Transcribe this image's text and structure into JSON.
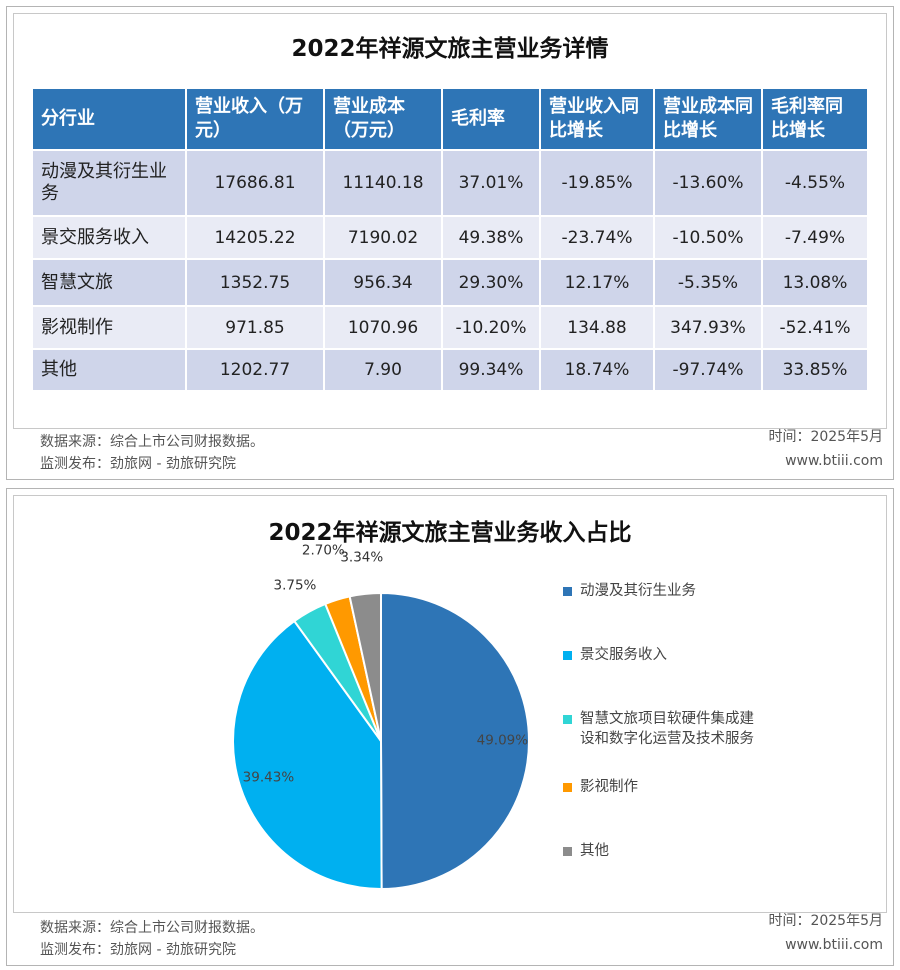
{
  "table_section": {
    "title": "2022年祥源文旅主营业务详情",
    "headers": [
      "分行业",
      "营业收入（万元）",
      "营业成本（万元）",
      "毛利率",
      "营业收入同比增长",
      "营业成本同比增长",
      "毛利率同比增长"
    ],
    "rows": [
      [
        "动漫及其衍生业务",
        "17686.81",
        "11140.18",
        "37.01%",
        "-19.85%",
        "-13.60%",
        "-4.55%"
      ],
      [
        "景交服务收入",
        "14205.22",
        "7190.02",
        "49.38%",
        "-23.74%",
        "-10.50%",
        "-7.49%"
      ],
      [
        "智慧文旅",
        "1352.75",
        "956.34",
        "29.30%",
        "12.17%",
        "-5.35%",
        "13.08%"
      ],
      [
        "影视制作",
        "971.85",
        "1070.96",
        "-10.20%",
        "134.88",
        "347.93%",
        "-52.41%"
      ],
      [
        "其他",
        "1202.77",
        "7.90",
        "99.34%",
        "18.74%",
        "-97.74%",
        "33.85%"
      ]
    ],
    "header_color": "#2e75b6",
    "footer": {
      "source": "数据来源：综合上市公司财报数据。",
      "publisher": "监测发布：劲旅网 - 劲旅研究院",
      "time": "时间：2025年5月",
      "site": "www.btiii.com"
    }
  },
  "chart_data": {
    "type": "pie",
    "title": "2022年祥源文旅主营业务收入占比",
    "slices": [
      {
        "label": "动漫及其衍生业务",
        "value": 49.09,
        "display": "49.09%",
        "color": "#2e75b6"
      },
      {
        "label": "景交服务收入",
        "value": 39.43,
        "display": "39.43%",
        "color": "#00b0f0"
      },
      {
        "label": "智慧文旅项目软硬件集成建设和数字化运营及技术服务",
        "value": 3.75,
        "display": "3.75%",
        "color": "#30d5d5"
      },
      {
        "label": "影视制作",
        "value": 2.7,
        "display": "2.70%",
        "color": "#ff9900"
      },
      {
        "label": "其他",
        "value": 3.34,
        "display": "3.34%",
        "color": "#8c8c8c"
      }
    ],
    "start_angle_deg": 0,
    "direction": "clockwise",
    "legend_position": "right"
  },
  "pie_section": {
    "footer": {
      "source": "数据来源：综合上市公司财报数据。",
      "publisher": "监测发布：劲旅网 - 劲旅研究院",
      "time": "时间：2025年5月",
      "site": "www.btiii.com"
    }
  }
}
